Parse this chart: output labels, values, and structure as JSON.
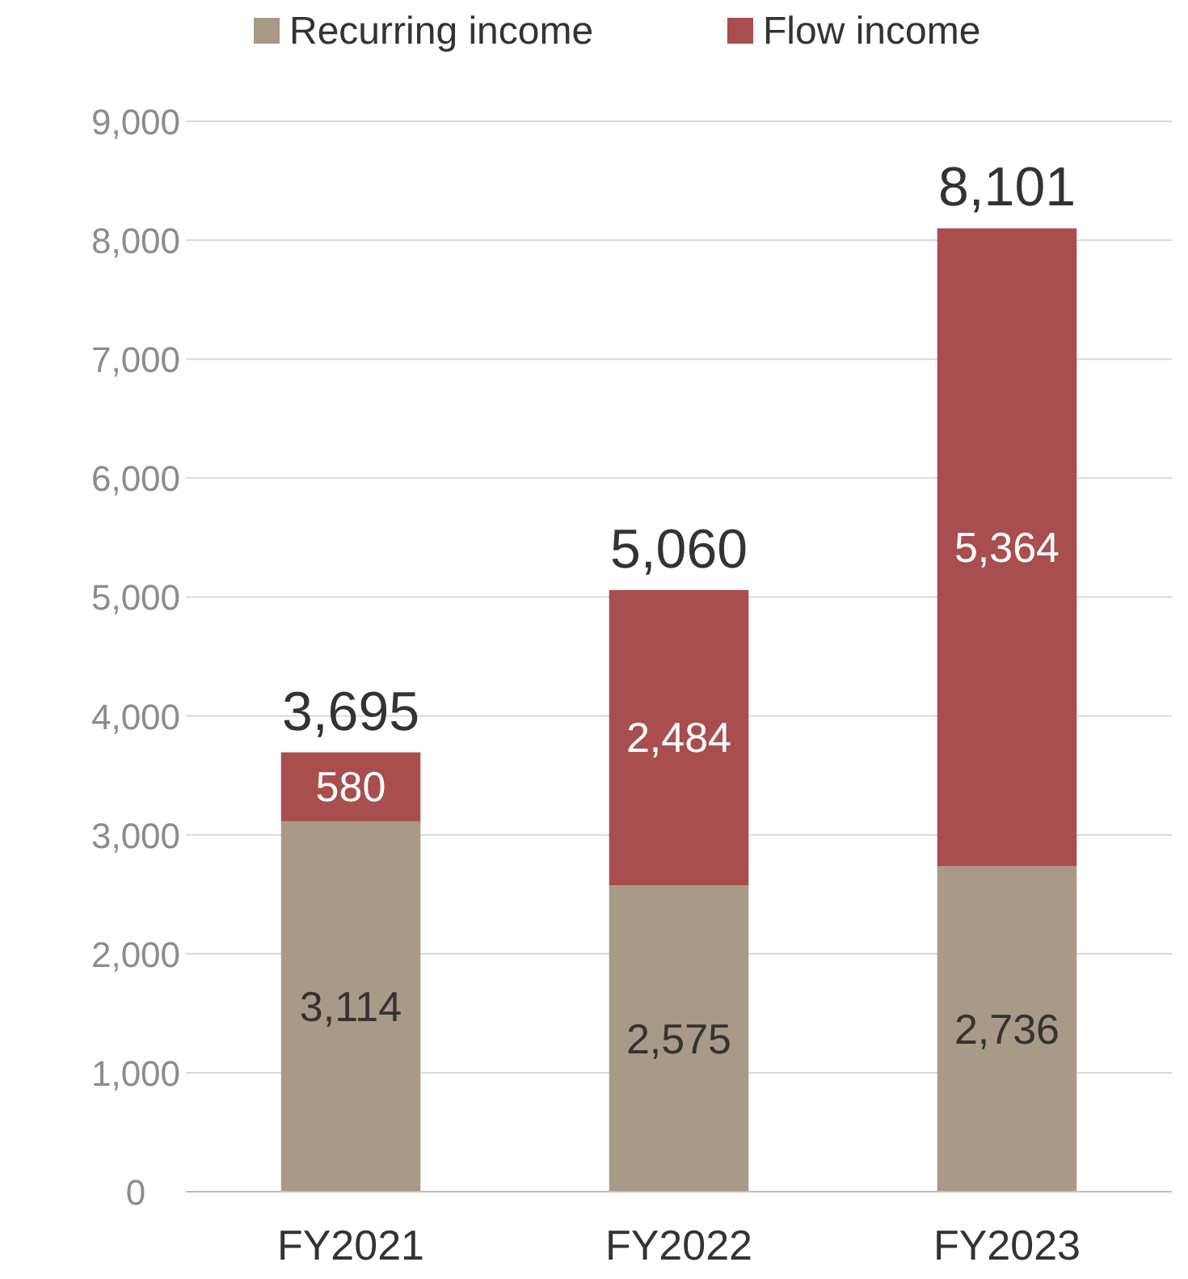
{
  "chart_data": {
    "type": "bar",
    "stacked": true,
    "categories": [
      "FY2021",
      "FY2022",
      "FY2023"
    ],
    "series": [
      {
        "name": "Recurring income",
        "color": "#a89a87",
        "values": [
          3114,
          2575,
          2736
        ],
        "value_labels": [
          "3,114",
          "2,575",
          "2,736"
        ]
      },
      {
        "name": "Flow income",
        "color": "#a84e4e",
        "values": [
          580,
          2484,
          5364
        ],
        "value_labels": [
          "580",
          "2,484",
          "5,364"
        ]
      }
    ],
    "totals": [
      "3,695",
      "5,060",
      "8,101"
    ],
    "ylim": [
      0,
      9000
    ],
    "yticks": [
      {
        "value": 0,
        "label": "0"
      },
      {
        "value": 1000,
        "label": "1,000"
      },
      {
        "value": 2000,
        "label": "2,000"
      },
      {
        "value": 3000,
        "label": "3,000"
      },
      {
        "value": 4000,
        "label": "4,000"
      },
      {
        "value": 5000,
        "label": "5,000"
      },
      {
        "value": 6000,
        "label": "6,000"
      },
      {
        "value": 7000,
        "label": "7,000"
      },
      {
        "value": 8000,
        "label": "8,000"
      },
      {
        "value": 9000,
        "label": "9,000"
      }
    ],
    "grid": "y",
    "legend": "top"
  }
}
